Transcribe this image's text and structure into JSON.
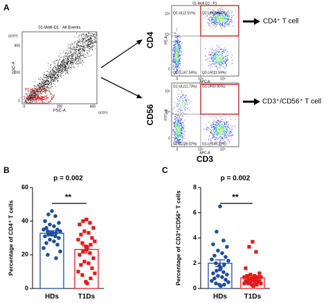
{
  "panel_labels": [
    "A",
    "B",
    "C"
  ],
  "flow": {
    "all_events": {
      "title": "01-Well-D1 : All Events",
      "x_label": "FSC-A",
      "y_label": "SSC-A",
      "x_unit": "(x10⁴)",
      "y_unit": "(x10⁴)",
      "x_ticks": [
        "0",
        "200",
        "400"
      ],
      "y_ticks": [
        "400",
        "200",
        "0"
      ],
      "gate": "P1(17.25%)"
    },
    "cd4": {
      "title": "01-Well-D1 : P1",
      "marker": "CD4",
      "x_label": "APC-A",
      "y_label": "PE-A",
      "x_ticks": [
        "0",
        "10⁴",
        "10⁵"
      ],
      "y_ticks": [
        "10⁵",
        "10⁴",
        "0"
      ],
      "quadrants": [
        "Q2-UL(2.51%)",
        "Q2-UR(28.66%)",
        "Q2-LL(47.24%)",
        "Q2-LR(21.59%)"
      ],
      "result": "CD4⁺ T cell"
    },
    "cd56": {
      "marker": "CD56",
      "x_label": "APC-A",
      "y_label": "FITC-A",
      "x_ticks": [
        "0",
        "10⁴",
        "10⁵"
      ],
      "y_ticks": [
        "10⁵",
        "10⁴",
        "0"
      ],
      "quadrants": [
        "G1-UL(11.73%)",
        "G1-UR(0.95%)",
        "G1-LL(38.02%)",
        "G1-LR(49.29%)"
      ],
      "result": "CD3⁺/CD56⁺ T cell"
    },
    "x_marker": "CD3"
  },
  "chart_data": [
    {
      "type": "bar",
      "title": "p = 0.002",
      "annotation": "**",
      "y_label": "Percentage of CD4⁺ T cells",
      "categories": [
        "HDs",
        "T1Ds"
      ],
      "colors": [
        "#1f4e9c",
        "#e31a1c"
      ],
      "values": [
        32.8,
        23.2
      ],
      "errors": [
        1.5,
        2.2
      ],
      "points": [
        [
          46,
          44,
          43,
          40,
          39,
          38,
          37,
          36,
          35,
          35,
          34,
          34,
          33,
          33,
          33,
          32,
          32,
          31,
          31,
          30,
          29,
          28,
          27,
          26,
          24,
          22,
          20,
          18
        ],
        [
          41,
          40,
          39,
          38,
          36,
          34,
          33,
          32,
          30,
          29,
          28,
          27,
          26,
          25,
          24,
          23,
          22,
          21,
          20,
          18,
          16,
          15,
          14,
          12,
          10,
          9,
          8,
          6,
          4,
          3
        ]
      ],
      "ylim": [
        0,
        60
      ],
      "yticks": [
        0,
        20,
        40,
        60
      ]
    },
    {
      "type": "bar",
      "title": "p = 0.002",
      "annotation": "**",
      "y_label": "Percentage of CD3⁺/CD56⁺ T cells",
      "categories": [
        "HDs",
        "T1Ds"
      ],
      "colors": [
        "#1f4e9c",
        "#e31a1c"
      ],
      "values": [
        2.0,
        0.85
      ],
      "errors": [
        0.27,
        0.15
      ],
      "points": [
        [
          6.5,
          4.5,
          3.8,
          3.5,
          3.3,
          3.0,
          2.8,
          2.6,
          2.5,
          2.3,
          2.2,
          2.0,
          1.9,
          1.8,
          1.6,
          1.5,
          1.4,
          1.3,
          1.2,
          1.1,
          1.0,
          0.9,
          0.8,
          0.7,
          0.6,
          0.5,
          0.4,
          0.3,
          0.3,
          0.2
        ],
        [
          3.7,
          3.3,
          2.9,
          1.6,
          1.2,
          1.1,
          1.0,
          1.0,
          0.9,
          0.9,
          0.9,
          0.8,
          0.8,
          0.8,
          0.7,
          0.7,
          0.7,
          0.6,
          0.6,
          0.6,
          0.5,
          0.5,
          0.5,
          0.5,
          0.4,
          0.4,
          0.4,
          0.3,
          0.3,
          0.2
        ]
      ],
      "ylim": [
        0,
        8
      ],
      "yticks": [
        0,
        2,
        4,
        6,
        8
      ]
    }
  ]
}
